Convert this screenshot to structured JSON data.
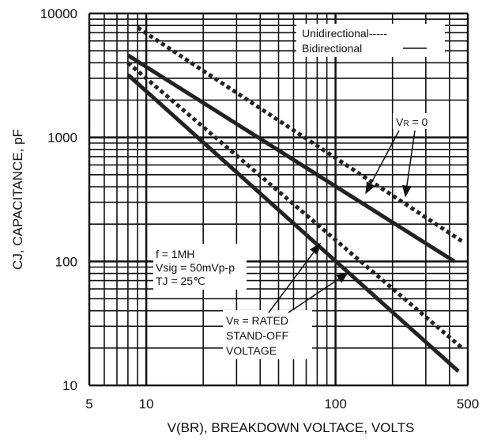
{
  "chart_data": {
    "type": "line",
    "xlabel": "V(BR), BREAKDOWN VOLTACE, VOLTS",
    "ylabel": "CJ, CAPACITANCE, pF",
    "xscale": "log",
    "yscale": "log",
    "xlim": [
      5,
      500
    ],
    "ylim": [
      10,
      10000
    ],
    "xticks": [
      5,
      10,
      100,
      500
    ],
    "yticks": [
      10,
      100,
      1000,
      10000
    ],
    "grid": true,
    "legend": [
      {
        "label": "Unidirectional-----",
        "style": "dotted"
      },
      {
        "label": "Bidirectional",
        "style": "solid"
      }
    ],
    "series": [
      {
        "style": "solid",
        "color": "#222222",
        "x": [
          8,
          425
        ],
        "values": [
          4600,
          100
        ]
      },
      {
        "style": "solid",
        "color": "#222222",
        "x": [
          8,
          446
        ],
        "values": [
          3200,
          13
        ]
      },
      {
        "style": "dotted",
        "color": "#222222",
        "x": [
          9,
          467
        ],
        "values": [
          7700,
          145
        ]
      },
      {
        "style": "dotted",
        "color": "#222222",
        "x": [
          8,
          467
        ],
        "values": [
          4000,
          20
        ]
      }
    ],
    "annotations": {
      "vr0": [
        "V",
        "R",
        " = 0"
      ],
      "test": [
        "f = 1MH",
        "Vsig = 50mVp-p",
        "TJ = 25℃"
      ],
      "rated": [
        [
          "V",
          "R",
          " = RATED"
        ],
        "STAND-OFF",
        "VOLTAGE"
      ]
    }
  }
}
